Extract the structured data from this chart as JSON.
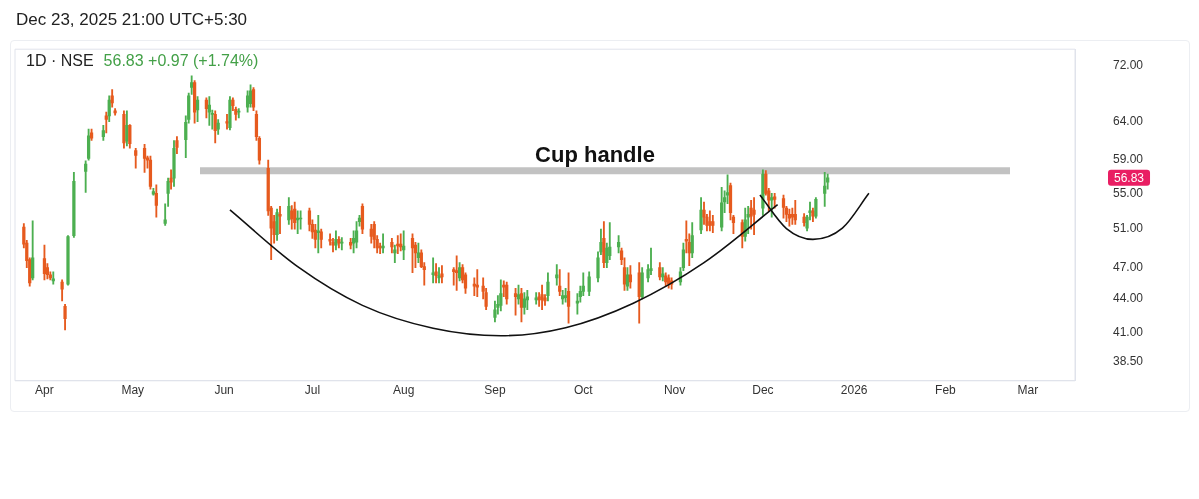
{
  "chart_data": {
    "type": "candlestick",
    "title": "1D · NSE",
    "subtitle": "56.83  +0.97 (+1.74%)",
    "annotations": [
      "Dec 23, 2025 21:00 UTC+5:30",
      "56.83"
    ],
    "series": [
      {
        "type": "line",
        "color": "#111111",
        "x": [
          "2025-06-03",
          "2025-06-26",
          "2025-07-18",
          "2025-08-11",
          "2025-09-03",
          "2025-09-25",
          "2025-10-18",
          "2025-11-11",
          "2025-12-06"
        ],
        "values": [
          53.1,
          47.1,
          43.4,
          41.35,
          40.7,
          41.4,
          43.6,
          47.5,
          53.7
        ]
      },
      {
        "type": "line",
        "color": "#111111",
        "x": [
          "2025-11-30",
          "2025-12-09",
          "2025-12-18",
          "2025-12-28",
          "2026-01-06"
        ],
        "values": [
          54.8,
          51.05,
          49.9,
          51.1,
          55.0
        ]
      }
    ],
    "log": "y",
    "xlim": [
      "2025-03-22",
      "2026-03-17"
    ],
    "xticks": [
      {
        "value": "2025-04-01",
        "label": "Apr"
      },
      {
        "value": "2025-05-01",
        "label": "May"
      },
      {
        "value": "2025-06-01",
        "label": "Jun"
      },
      {
        "value": "2025-07-01",
        "label": "Jul"
      },
      {
        "value": "2025-08-01",
        "label": "Aug"
      },
      {
        "value": "2025-09-01",
        "label": "Sep"
      },
      {
        "value": "2025-10-01",
        "label": "Oct"
      },
      {
        "value": "2025-11-01",
        "label": "Nov"
      },
      {
        "value": "2025-12-01",
        "label": "Dec"
      },
      {
        "value": "2026-01-01",
        "label": "2026"
      },
      {
        "value": "2026-02-01",
        "label": "Feb"
      },
      {
        "value": "2026-03-01",
        "label": "Mar"
      }
    ],
    "ylim": [
      37,
      74.6
    ],
    "yticks": [
      {
        "value": 38.5,
        "label": "38.50"
      },
      {
        "value": 41,
        "label": "41.00"
      },
      {
        "value": 44,
        "label": "44.00"
      },
      {
        "value": 47,
        "label": "47.00"
      },
      {
        "value": 51,
        "label": "51.00"
      },
      {
        "value": 55,
        "label": "55.00"
      },
      {
        "value": 59,
        "label": "59.00"
      },
      {
        "value": 64,
        "label": "64.00"
      },
      {
        "value": 72,
        "label": "72.00"
      }
    ],
    "ref_lines": [
      {
        "axis": "y",
        "value": 57.7,
        "label": "Cup handle",
        "color": "#c2c2c2"
      }
    ],
    "x": [
      "2025-03-25",
      "2025-03-26",
      "2025-03-27",
      "2025-03-28",
      "2025-04-01",
      "2025-04-02",
      "2025-04-03",
      "2025-04-04",
      "2025-04-07",
      "2025-04-08",
      "2025-04-09",
      "2025-04-11",
      "2025-04-15",
      "2025-04-16",
      "2025-04-17",
      "2025-04-21",
      "2025-04-22",
      "2025-04-23",
      "2025-04-24",
      "2025-04-25",
      "2025-04-28",
      "2025-04-29",
      "2025-04-30",
      "2025-05-02",
      "2025-05-05",
      "2025-05-06",
      "2025-05-07",
      "2025-05-08",
      "2025-05-09",
      "2025-05-12",
      "2025-05-13",
      "2025-05-14",
      "2025-05-15",
      "2025-05-16",
      "2025-05-19",
      "2025-05-20",
      "2025-05-21",
      "2025-05-22",
      "2025-05-23",
      "2025-05-26",
      "2025-05-27",
      "2025-05-28",
      "2025-05-29",
      "2025-05-30",
      "2025-06-02",
      "2025-06-03",
      "2025-06-04",
      "2025-06-05",
      "2025-06-06",
      "2025-06-09",
      "2025-06-10",
      "2025-06-11",
      "2025-06-12",
      "2025-06-13",
      "2025-06-16",
      "2025-06-17",
      "2025-06-18",
      "2025-06-19",
      "2025-06-20",
      "2025-06-23",
      "2025-06-24",
      "2025-06-25",
      "2025-06-26",
      "2025-06-27",
      "2025-06-30",
      "2025-07-01",
      "2025-07-02",
      "2025-07-03",
      "2025-07-04",
      "2025-07-07",
      "2025-07-08",
      "2025-07-09",
      "2025-07-10",
      "2025-07-11",
      "2025-07-14",
      "2025-07-15",
      "2025-07-16",
      "2025-07-17",
      "2025-07-18",
      "2025-07-21",
      "2025-07-22",
      "2025-07-23",
      "2025-07-24",
      "2025-07-25",
      "2025-07-28",
      "2025-07-29",
      "2025-07-30",
      "2025-07-31",
      "2025-08-01",
      "2025-08-04",
      "2025-08-05",
      "2025-08-06",
      "2025-08-07",
      "2025-08-08",
      "2025-08-11",
      "2025-08-12",
      "2025-08-13",
      "2025-08-14",
      "2025-08-18",
      "2025-08-19",
      "2025-08-20",
      "2025-08-21",
      "2025-08-22",
      "2025-08-25",
      "2025-08-26",
      "2025-08-28",
      "2025-08-29",
      "2025-09-01",
      "2025-09-02",
      "2025-09-03",
      "2025-09-04",
      "2025-09-05",
      "2025-09-08",
      "2025-09-09",
      "2025-09-10",
      "2025-09-11",
      "2025-09-12",
      "2025-09-15",
      "2025-09-16",
      "2025-09-17",
      "2025-09-18",
      "2025-09-19",
      "2025-09-22",
      "2025-09-23",
      "2025-09-24",
      "2025-09-25",
      "2025-09-26",
      "2025-09-29",
      "2025-09-30",
      "2025-10-01",
      "2025-10-03",
      "2025-10-06",
      "2025-10-07",
      "2025-10-08",
      "2025-10-09",
      "2025-10-10",
      "2025-10-13",
      "2025-10-14",
      "2025-10-15",
      "2025-10-16",
      "2025-10-17",
      "2025-10-20",
      "2025-10-21",
      "2025-10-23",
      "2025-10-24",
      "2025-10-27",
      "2025-10-28",
      "2025-10-29",
      "2025-10-30",
      "2025-10-31",
      "2025-11-03",
      "2025-11-04",
      "2025-11-05",
      "2025-11-06",
      "2025-11-07",
      "2025-11-10",
      "2025-11-11",
      "2025-11-12",
      "2025-11-13",
      "2025-11-14",
      "2025-11-17",
      "2025-11-18",
      "2025-11-19",
      "2025-11-20",
      "2025-11-21",
      "2025-11-24",
      "2025-11-25",
      "2025-11-26",
      "2025-11-27",
      "2025-11-28",
      "2025-12-01",
      "2025-12-02",
      "2025-12-03",
      "2025-12-04",
      "2025-12-05",
      "2025-12-08",
      "2025-12-09",
      "2025-12-10",
      "2025-12-11",
      "2025-12-12",
      "2025-12-15",
      "2025-12-16",
      "2025-12-17",
      "2025-12-18",
      "2025-12-19",
      "2025-12-22",
      "2025-12-23"
    ],
    "ohlc": [
      [
        51.2,
        51.6,
        49.0,
        49.4
      ],
      [
        49.5,
        49.8,
        47.0,
        47.7
      ],
      [
        47.8,
        48.0,
        45.2,
        45.5
      ],
      [
        46.0,
        51.9,
        45.8,
        48.0
      ],
      [
        47.9,
        49.3,
        45.8,
        46.4
      ],
      [
        47.0,
        47.4,
        45.9,
        46.3
      ],
      [
        46.3,
        46.6,
        45.8,
        46.0
      ],
      [
        45.7,
        46.6,
        45.4,
        45.9
      ],
      [
        45.6,
        45.8,
        43.8,
        44.9
      ],
      [
        43.3,
        43.5,
        41.2,
        42.2
      ],
      [
        45.4,
        50.3,
        45.3,
        50.2
      ],
      [
        50.3,
        57.5,
        50.1,
        56.4
      ],
      [
        57.6,
        58.9,
        55.1,
        58.5
      ],
      [
        59.2,
        63.0,
        59.0,
        62.1
      ],
      [
        62.5,
        63.0,
        61.5,
        61.8
      ],
      [
        62.0,
        63.5,
        61.5,
        62.8
      ],
      [
        64.8,
        65.3,
        62.5,
        64.3
      ],
      [
        64.8,
        67.6,
        64.0,
        67.0
      ],
      [
        67.6,
        68.5,
        66.0,
        66.6
      ],
      [
        65.5,
        65.8,
        64.9,
        65.2
      ],
      [
        65.0,
        65.5,
        60.5,
        61.2
      ],
      [
        61.4,
        65.5,
        60.8,
        63.5
      ],
      [
        63.5,
        63.6,
        60.5,
        61.1
      ],
      [
        60.2,
        60.5,
        58.0,
        59.6
      ],
      [
        60.5,
        61.0,
        57.5,
        59.2
      ],
      [
        59.3,
        59.5,
        58.0,
        59.0
      ],
      [
        59.0,
        59.5,
        55.5,
        55.8
      ],
      [
        54.9,
        55.6,
        54.8,
        55.2
      ],
      [
        55.0,
        56.0,
        52.3,
        53.6
      ],
      [
        51.6,
        53.8,
        51.4,
        52.0
      ],
      [
        55.0,
        56.8,
        53.5,
        56.4
      ],
      [
        56.8,
        57.8,
        55.5,
        56.3
      ],
      [
        56.8,
        61.5,
        55.8,
        60.5
      ],
      [
        61.5,
        62.0,
        59.8,
        60.6
      ],
      [
        61.6,
        64.8,
        59.3,
        63.9
      ],
      [
        64.3,
        68.0,
        63.8,
        67.6
      ],
      [
        68.8,
        70.5,
        67.8,
        69.5
      ],
      [
        69.5,
        69.8,
        63.8,
        65.3
      ],
      [
        65.6,
        67.5,
        64.0,
        67.0
      ],
      [
        67.0,
        67.3,
        64.5,
        65.8
      ],
      [
        65.3,
        67.5,
        63.5,
        66.3
      ],
      [
        65.0,
        65.6,
        63.0,
        65.1
      ],
      [
        65.0,
        65.5,
        61.2,
        62.8
      ],
      [
        63.0,
        64.3,
        62.3,
        63.8
      ],
      [
        64.0,
        65.0,
        63.0,
        63.8
      ],
      [
        63.2,
        67.5,
        62.9,
        67.0
      ],
      [
        67.0,
        67.3,
        65.5,
        66.2
      ],
      [
        65.7,
        66.0,
        64.2,
        65.0
      ],
      [
        65.3,
        65.8,
        64.5,
        65.4
      ],
      [
        66.0,
        68.3,
        65.3,
        67.6
      ],
      [
        66.5,
        69.2,
        66.0,
        68.3
      ],
      [
        68.5,
        68.8,
        65.5,
        66.0
      ],
      [
        65.0,
        65.5,
        61.5,
        62.0
      ],
      [
        61.8,
        62.0,
        58.5,
        59.0
      ],
      [
        58.0,
        59.0,
        52.5,
        53.0
      ],
      [
        53.3,
        53.5,
        47.8,
        51.1
      ],
      [
        51.8,
        52.5,
        49.5,
        50.4
      ],
      [
        50.4,
        53.2,
        49.8,
        52.8
      ],
      [
        52.6,
        53.5,
        50.5,
        52.4
      ],
      [
        52.0,
        54.5,
        51.5,
        53.5
      ],
      [
        53.0,
        53.6,
        51.0,
        52.1
      ],
      [
        53.2,
        54.0,
        51.0,
        51.7
      ],
      [
        52.0,
        53.0,
        50.5,
        52.2
      ],
      [
        52.1,
        53.0,
        51.0,
        52.2
      ],
      [
        53.0,
        53.3,
        50.8,
        51.5
      ],
      [
        51.5,
        52.0,
        50.0,
        50.7
      ],
      [
        50.9,
        51.5,
        49.0,
        49.9
      ],
      [
        50.6,
        52.5,
        48.5,
        50.8
      ],
      [
        50.7,
        51.0,
        49.0,
        49.9
      ],
      [
        49.9,
        50.5,
        49.3,
        49.7
      ],
      [
        49.6,
        50.0,
        48.6,
        49.3
      ],
      [
        49.3,
        50.8,
        48.8,
        49.9
      ],
      [
        49.9,
        50.2,
        49.0,
        49.5
      ],
      [
        49.5,
        50.1,
        48.8,
        49.6
      ],
      [
        49.6,
        50.0,
        48.9,
        49.3
      ],
      [
        49.5,
        50.8,
        48.5,
        50.0
      ],
      [
        49.6,
        51.8,
        49.0,
        50.8
      ],
      [
        51.8,
        52.5,
        51.3,
        52.2
      ],
      [
        53.5,
        53.8,
        50.5,
        51.0
      ],
      [
        51.0,
        51.5,
        49.5,
        50.2
      ],
      [
        51.5,
        51.8,
        49.0,
        49.9
      ],
      [
        49.9,
        50.3,
        48.5,
        49.0
      ],
      [
        49.2,
        49.5,
        48.4,
        49.0
      ],
      [
        49.0,
        50.5,
        48.5,
        49.2
      ],
      [
        49.6,
        50.0,
        48.5,
        49.1
      ],
      [
        48.5,
        49.3,
        47.5,
        48.8
      ],
      [
        49.4,
        50.3,
        48.4,
        49.2
      ],
      [
        49.4,
        50.5,
        48.7,
        49.1
      ],
      [
        48.8,
        50.8,
        47.8,
        49.2
      ],
      [
        50.0,
        50.5,
        46.5,
        49.0
      ],
      [
        49.3,
        49.6,
        47.0,
        48.5
      ],
      [
        48.0,
        49.5,
        47.5,
        48.5
      ],
      [
        48.5,
        48.8,
        47.0,
        47.1
      ],
      [
        47.1,
        47.5,
        45.3,
        46.8
      ],
      [
        46.3,
        48.0,
        45.5,
        46.5
      ],
      [
        46.6,
        47.4,
        45.5,
        46.2
      ],
      [
        46.0,
        47.0,
        45.5,
        46.2
      ],
      [
        46.4,
        47.2,
        45.5,
        46.1
      ],
      [
        46.8,
        47.0,
        45.3,
        46.6
      ],
      [
        46.7,
        48.2,
        44.8,
        46.5
      ],
      [
        46.0,
        47.5,
        45.7,
        47.0
      ],
      [
        47.0,
        47.3,
        45.5,
        45.8
      ],
      [
        46.3,
        46.5,
        44.5,
        45.0
      ],
      [
        45.4,
        46.0,
        44.3,
        45.2
      ],
      [
        45.3,
        46.8,
        44.2,
        45.1
      ],
      [
        45.2,
        46.0,
        44.0,
        44.7
      ],
      [
        44.6,
        45.0,
        43.0,
        43.3
      ],
      [
        42.3,
        43.8,
        41.9,
        43.0
      ],
      [
        43.2,
        44.3,
        42.6,
        43.5
      ],
      [
        43.4,
        45.8,
        42.9,
        44.5
      ],
      [
        45.3,
        45.7,
        44.2,
        45.1
      ],
      [
        45.3,
        45.6,
        43.5,
        44.0
      ],
      [
        44.5,
        45.0,
        42.5,
        44.2
      ],
      [
        44.0,
        45.3,
        43.5,
        44.4
      ],
      [
        44.5,
        45.0,
        41.9,
        43.2
      ],
      [
        43.2,
        44.6,
        42.6,
        44.0
      ],
      [
        43.9,
        44.8,
        43.0,
        44.2
      ],
      [
        43.9,
        44.6,
        43.5,
        44.1
      ],
      [
        44.2,
        44.6,
        43.3,
        43.9
      ],
      [
        44.4,
        45.3,
        43.0,
        43.9
      ],
      [
        44.1,
        44.4,
        43.4,
        43.8
      ],
      [
        44.3,
        46.5,
        43.8,
        45.6
      ],
      [
        46.0,
        47.3,
        45.3,
        46.3
      ],
      [
        45.2,
        46.8,
        44.3,
        44.7
      ],
      [
        44.0,
        44.8,
        43.5,
        44.3
      ],
      [
        44.1,
        45.0,
        43.7,
        44.3
      ],
      [
        44.7,
        46.5,
        41.8,
        43.3
      ],
      [
        43.6,
        44.5,
        42.6,
        43.8
      ],
      [
        44.2,
        45.2,
        43.7,
        44.7
      ],
      [
        44.7,
        46.5,
        44.3,
        45.2
      ],
      [
        44.7,
        46.6,
        44.3,
        46.1
      ],
      [
        46.0,
        48.6,
        45.6,
        48.0
      ],
      [
        48.6,
        51.0,
        48.3,
        49.6
      ],
      [
        50.0,
        51.8,
        47.0,
        47.5
      ],
      [
        47.5,
        49.5,
        47.0,
        49.0
      ],
      [
        48.2,
        51.7,
        47.8,
        49.1
      ],
      [
        49.1,
        50.3,
        48.5,
        49.6
      ],
      [
        48.7,
        49.0,
        47.3,
        47.8
      ],
      [
        47.0,
        48.0,
        44.8,
        45.4
      ],
      [
        45.2,
        47.0,
        44.8,
        46.3
      ],
      [
        46.3,
        47.2,
        45.0,
        45.6
      ],
      [
        46.5,
        47.5,
        41.8,
        44.2
      ],
      [
        44.2,
        47.0,
        44.0,
        46.5
      ],
      [
        46.0,
        47.3,
        45.6,
        46.8
      ],
      [
        46.7,
        49.0,
        46.3,
        46.9
      ],
      [
        47.0,
        47.5,
        45.8,
        46.1
      ],
      [
        46.1,
        47.0,
        45.7,
        46.4
      ],
      [
        46.2,
        46.5,
        45.2,
        45.6
      ],
      [
        46.0,
        46.3,
        45.0,
        45.4
      ],
      [
        45.7,
        46.0,
        44.9,
        45.4
      ],
      [
        45.6,
        47.0,
        45.3,
        46.6
      ],
      [
        47.0,
        49.5,
        46.7,
        48.8
      ],
      [
        49.9,
        51.9,
        48.5,
        49.7
      ],
      [
        49.6,
        50.5,
        47.2,
        48.5
      ],
      [
        48.5,
        51.7,
        48.0,
        50.3
      ],
      [
        50.9,
        54.5,
        50.5,
        53.1
      ],
      [
        53.1,
        54.0,
        51.5,
        52.3
      ],
      [
        52.3,
        52.6,
        50.8,
        51.4
      ],
      [
        51.8,
        53.0,
        50.8,
        51.4
      ],
      [
        51.8,
        52.5,
        50.6,
        51.4
      ],
      [
        51.2,
        55.7,
        50.8,
        53.9
      ],
      [
        54.0,
        55.3,
        52.8,
        54.5
      ],
      [
        54.8,
        57.2,
        53.8,
        55.1
      ],
      [
        55.9,
        56.2,
        52.0,
        52.8
      ],
      [
        52.3,
        52.5,
        50.5,
        51.7
      ],
      [
        51.7,
        52.0,
        49.0,
        50.2
      ],
      [
        50.2,
        53.3,
        49.7,
        52.0
      ],
      [
        52.3,
        53.5,
        50.5,
        52.6
      ],
      [
        53.3,
        54.2,
        51.0,
        52.4
      ],
      [
        53.1,
        54.5,
        50.4,
        52.6
      ],
      [
        53.3,
        57.8,
        52.5,
        57.3
      ],
      [
        57.3,
        57.7,
        54.8,
        55.0
      ],
      [
        55.3,
        55.6,
        53.0,
        54.2
      ],
      [
        54.2,
        55.0,
        52.3,
        54.5
      ],
      [
        54.6,
        55.0,
        53.3,
        54.3
      ],
      [
        54.4,
        54.8,
        52.2,
        53.4
      ],
      [
        53.3,
        53.5,
        51.8,
        52.6
      ],
      [
        52.6,
        53.2,
        51.3,
        52.2
      ],
      [
        52.6,
        53.3,
        51.5,
        52.3
      ],
      [
        52.6,
        54.2,
        51.5,
        52.0
      ],
      [
        52.3,
        52.7,
        51.3,
        51.7
      ],
      [
        51.1,
        52.5,
        50.8,
        52.3
      ],
      [
        52.8,
        54.0,
        52.0,
        53.0
      ],
      [
        53.0,
        53.3,
        51.8,
        52.4
      ],
      [
        52.4,
        54.5,
        52.2,
        54.3
      ],
      [
        55.0,
        57.5,
        53.5,
        55.86
      ],
      [
        56.3,
        57.3,
        55.5,
        56.83
      ]
    ],
    "colors": [
      "#e65a1e",
      "#e65a1e",
      "#e65a1e",
      "#4caf50",
      "#e65a1e",
      "#e65a1e",
      "#e65a1e",
      "#4caf50",
      "#e65a1e",
      "#e65a1e",
      "#4caf50",
      "#4caf50",
      "#4caf50",
      "#4caf50",
      "#e65a1e",
      "#4caf50",
      "#e65a1e",
      "#4caf50",
      "#e65a1e",
      "#e65a1e",
      "#e65a1e",
      "#4caf50",
      "#e65a1e",
      "#e65a1e",
      "#e65a1e",
      "#e65a1e",
      "#e65a1e",
      "#4caf50",
      "#e65a1e",
      "#4caf50",
      "#4caf50",
      "#e65a1e",
      "#4caf50",
      "#e65a1e",
      "#4caf50",
      "#4caf50",
      "#4caf50",
      "#e65a1e",
      "#4caf50",
      "#e65a1e",
      "#4caf50",
      "#4caf50",
      "#e65a1e",
      "#4caf50",
      "#e65a1e",
      "#4caf50",
      "#e65a1e",
      "#e65a1e",
      "#4caf50",
      "#4caf50",
      "#4caf50",
      "#e65a1e",
      "#e65a1e",
      "#e65a1e",
      "#e65a1e",
      "#e65a1e",
      "#e65a1e",
      "#4caf50",
      "#e65a1e",
      "#4caf50",
      "#e65a1e",
      "#e65a1e",
      "#4caf50",
      "#4caf50",
      "#e65a1e",
      "#e65a1e",
      "#e65a1e",
      "#4caf50",
      "#e65a1e",
      "#e65a1e",
      "#e65a1e",
      "#4caf50",
      "#e65a1e",
      "#4caf50",
      "#e65a1e",
      "#4caf50",
      "#4caf50",
      "#4caf50",
      "#e65a1e",
      "#e65a1e",
      "#e65a1e",
      "#e65a1e",
      "#e65a1e",
      "#4caf50",
      "#e65a1e",
      "#4caf50",
      "#e65a1e",
      "#e65a1e",
      "#4caf50",
      "#e65a1e",
      "#e65a1e",
      "#4caf50",
      "#e65a1e",
      "#e65a1e",
      "#4caf50",
      "#e65a1e",
      "#4caf50",
      "#e65a1e",
      "#e65a1e",
      "#e65a1e",
      "#4caf50",
      "#e65a1e",
      "#e65a1e",
      "#e65a1e",
      "#e65a1e",
      "#e65a1e",
      "#e65a1e",
      "#4caf50",
      "#4caf50",
      "#4caf50",
      "#e65a1e",
      "#e65a1e",
      "#e65a1e",
      "#4caf50",
      "#e65a1e",
      "#4caf50",
      "#4caf50",
      "#4caf50",
      "#e65a1e",
      "#e65a1e",
      "#e65a1e",
      "#4caf50",
      "#4caf50",
      "#e65a1e",
      "#4caf50",
      "#4caf50",
      "#e65a1e",
      "#4caf50",
      "#4caf50",
      "#4caf50",
      "#4caf50",
      "#4caf50",
      "#4caf50",
      "#e65a1e",
      "#4caf50",
      "#4caf50",
      "#4caf50",
      "#e65a1e",
      "#e65a1e",
      "#4caf50",
      "#e65a1e",
      "#e65a1e",
      "#4caf50",
      "#4caf50",
      "#4caf50",
      "#e65a1e",
      "#4caf50",
      "#e65a1e",
      "#e65a1e",
      "#e65a1e",
      "#4caf50",
      "#4caf50",
      "#e65a1e",
      "#e65a1e",
      "#4caf50",
      "#4caf50",
      "#e65a1e",
      "#e65a1e",
      "#e65a1e",
      "#e65a1e",
      "#4caf50",
      "#4caf50",
      "#4caf50",
      "#e65a1e",
      "#e65a1e",
      "#e65a1e",
      "#4caf50",
      "#4caf50",
      "#e65a1e",
      "#e65a1e",
      "#4caf50",
      "#e65a1e",
      "#e65a1e",
      "#4caf50",
      "#e65a1e",
      "#e65a1e",
      "#e65a1e",
      "#e65a1e",
      "#e65a1e",
      "#e65a1e",
      "#e65a1e",
      "#4caf50",
      "#4caf50",
      "#e65a1e",
      "#4caf50",
      "#4caf50",
      "#4caf50"
    ]
  }
}
